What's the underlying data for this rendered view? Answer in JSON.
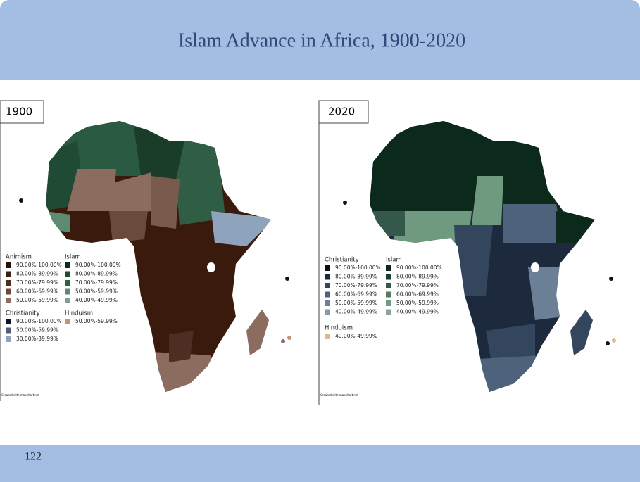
{
  "header": {
    "title": "Islam Advance in Africa, 1900-2020"
  },
  "footer": {
    "page_number": "122"
  },
  "maps": [
    {
      "year": "1900",
      "credit": "Created with mapchart.net",
      "legend": [
        {
          "title": "Animism",
          "items": [
            {
              "label": "90.00%-100.00%",
              "color": "#2a1208"
            },
            {
              "label": "80.00%-89.99%",
              "color": "#3d1f14"
            },
            {
              "label": "70.00%-79.99%",
              "color": "#4e2d22"
            },
            {
              "label": "60.00%-69.99%",
              "color": "#6b4a3e"
            },
            {
              "label": "50.00%-59.99%",
              "color": "#8c6c5e"
            }
          ]
        },
        {
          "title": "Christianity",
          "items": [
            {
              "label": "90.00%-100.00%",
              "color": "#0b1525"
            },
            {
              "label": "50.00%-59.99%",
              "color": "#4e5f78"
            },
            {
              "label": "30.00%-39.99%",
              "color": "#8ea3bc"
            }
          ]
        },
        {
          "title": "Islam",
          "items": [
            {
              "label": "90.00%-100.00%",
              "color": "#0e2a1e"
            },
            {
              "label": "80.00%-89.99%",
              "color": "#1f4a33"
            },
            {
              "label": "70.00%-79.99%",
              "color": "#2f5e45"
            },
            {
              "label": "50.00%-59.99%",
              "color": "#5d8a72"
            },
            {
              "label": "40.00%-49.99%",
              "color": "#7e9f8e"
            }
          ]
        },
        {
          "title": "Hinduism",
          "items": [
            {
              "label": "50.00%-59.99%",
              "color": "#c49274"
            }
          ]
        }
      ]
    },
    {
      "year": "2020",
      "credit": "Created with mapchart.net",
      "legend": [
        {
          "title": "Christianity",
          "items": [
            {
              "label": "90.00%-100.00%",
              "color": "#0d0d18"
            },
            {
              "label": "80.00%-89.99%",
              "color": "#1d2a3d"
            },
            {
              "label": "70.00%-79.99%",
              "color": "#34465e"
            },
            {
              "label": "60.00%-69.99%",
              "color": "#4f627b"
            },
            {
              "label": "50.00%-59.99%",
              "color": "#6b7f96"
            },
            {
              "label": "40.00%-49.99%",
              "color": "#8799ad"
            }
          ]
        },
        {
          "title": "Hinduism",
          "items": [
            {
              "label": "40.00%-49.99%",
              "color": "#e0b890"
            }
          ]
        },
        {
          "title": "Islam",
          "items": [
            {
              "label": "90.00%-100.00%",
              "color": "#0c2a1c"
            },
            {
              "label": "80.00%-89.99%",
              "color": "#1a3f2c"
            },
            {
              "label": "70.00%-79.99%",
              "color": "#34594a"
            },
            {
              "label": "60.00%-69.99%",
              "color": "#557a63"
            },
            {
              "label": "50.00%-59.99%",
              "color": "#6f9a7f"
            },
            {
              "label": "40.00%-49.99%",
              "color": "#8da397"
            }
          ]
        }
      ]
    }
  ]
}
